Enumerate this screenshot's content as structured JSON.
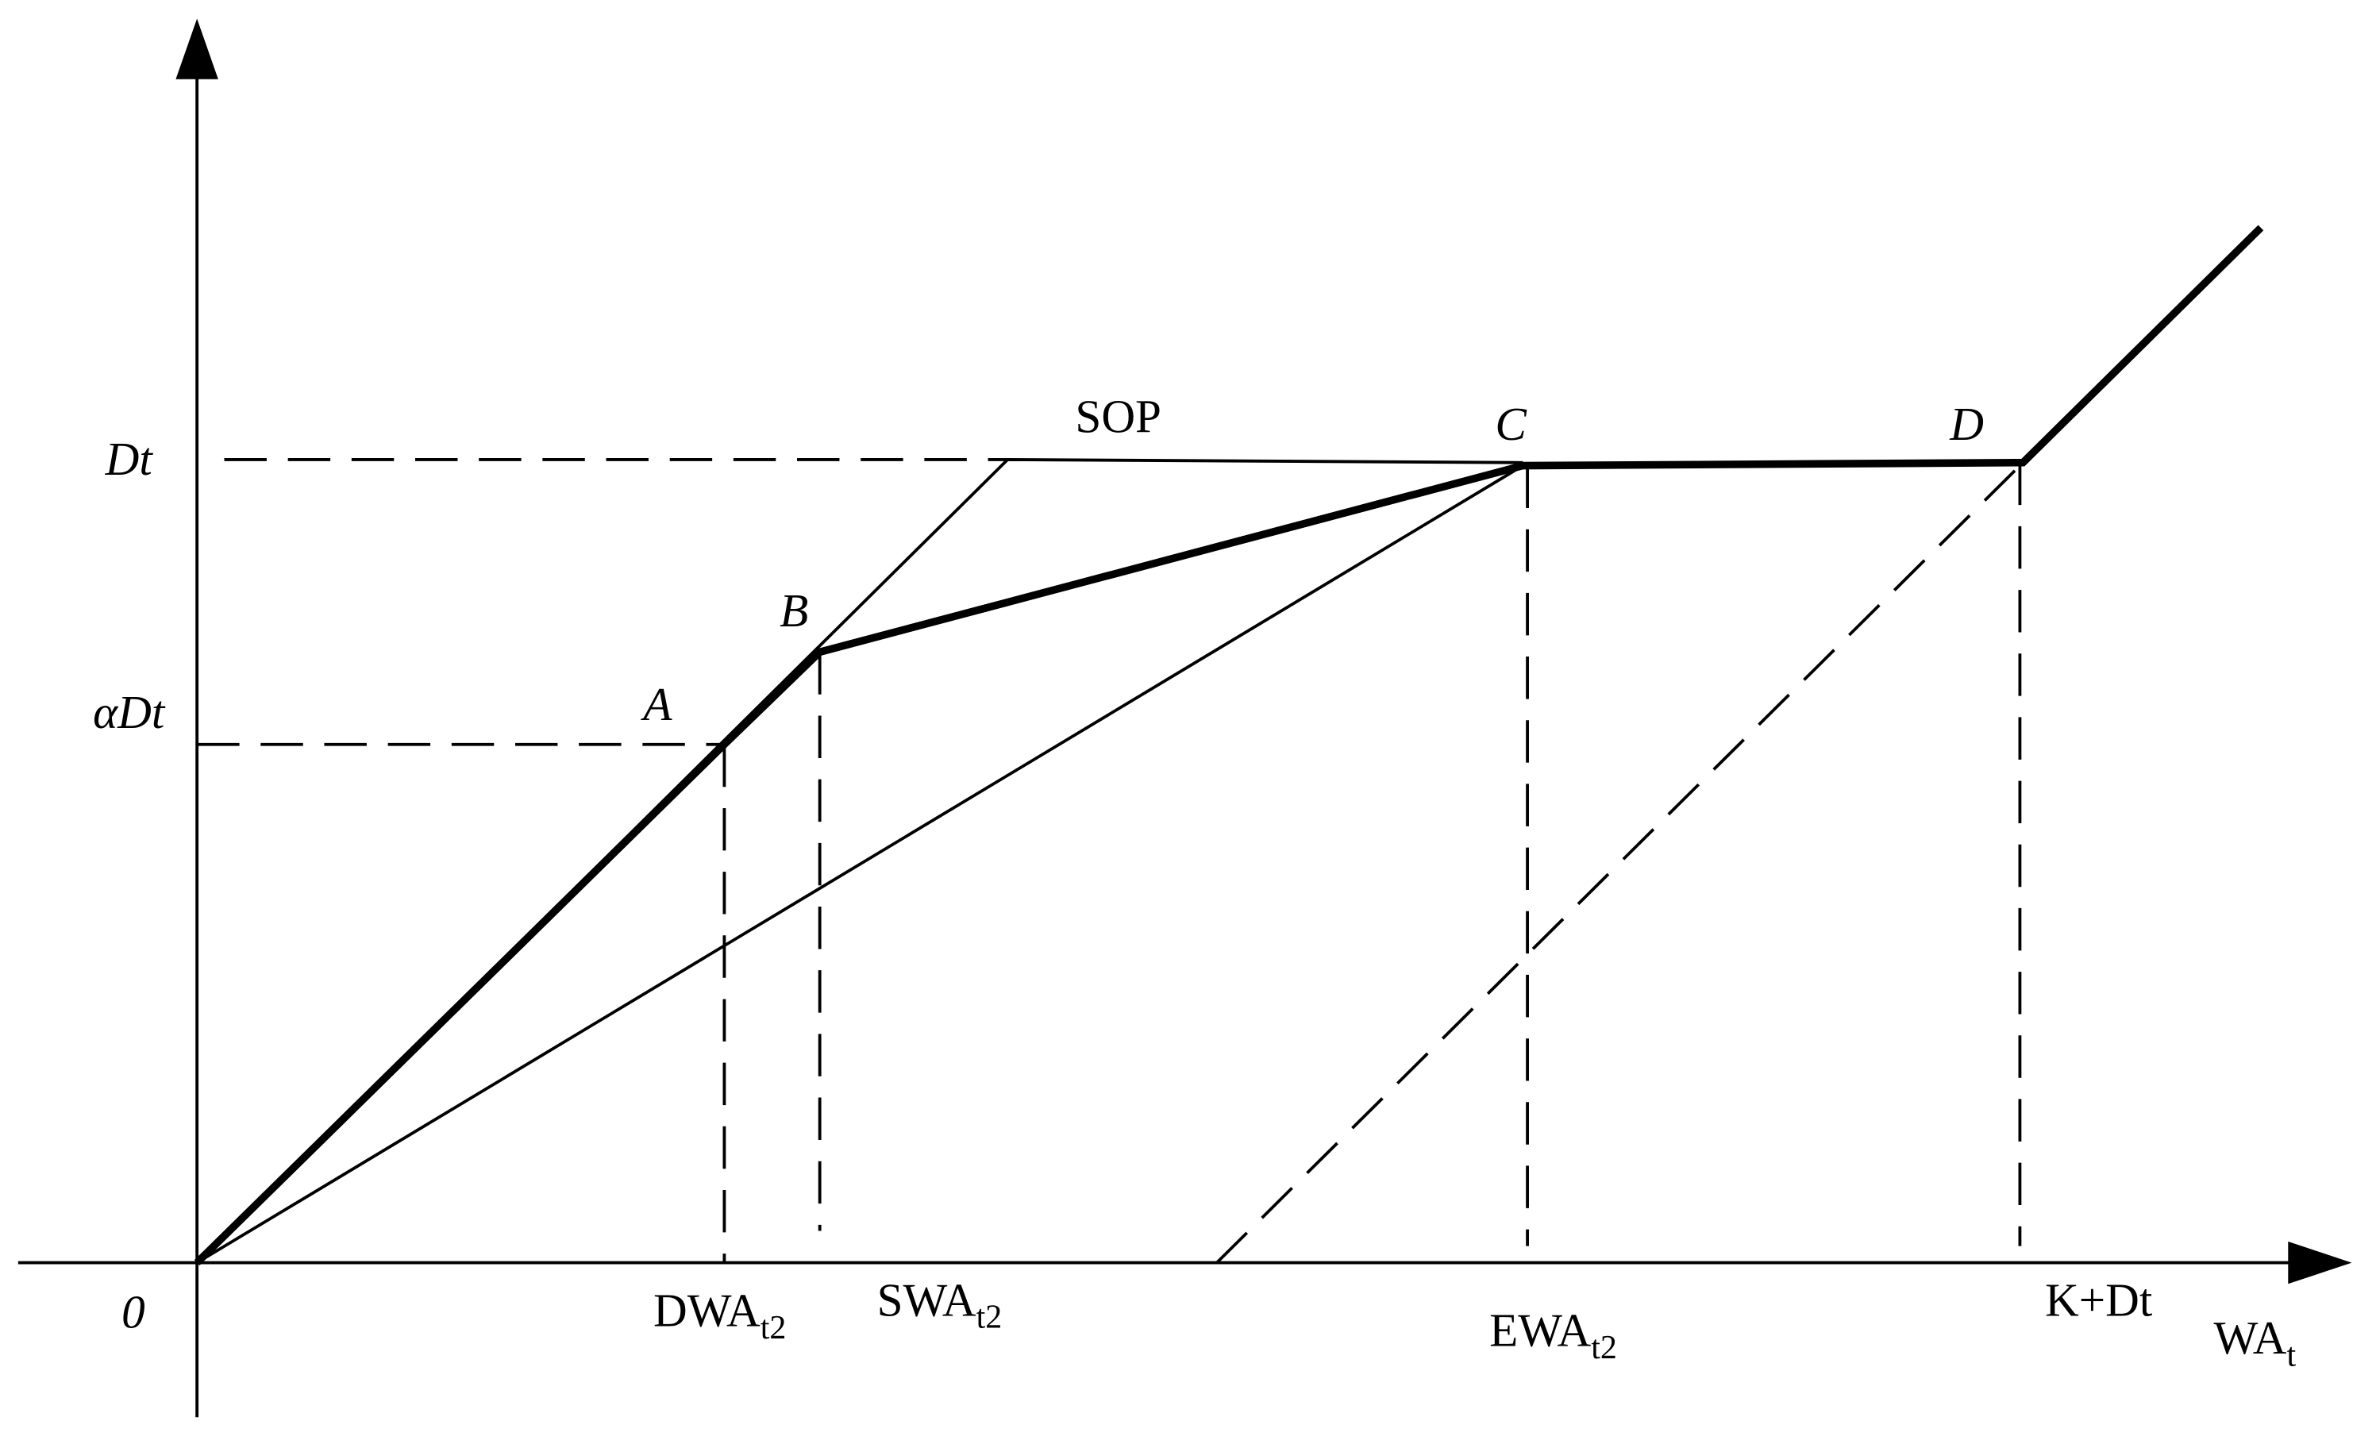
{
  "axes": {
    "y_labels": {
      "dt": "Dt",
      "alpha_dt": "αDt",
      "origin": "0"
    },
    "x_labels": {
      "dwa": {
        "main": "DWA",
        "sub": "t2"
      },
      "swa": {
        "main": "SWA",
        "sub": "t2"
      },
      "ewa": {
        "main": "EWA",
        "sub": "t2"
      },
      "kdt": "K+Dt",
      "wa": {
        "main": "WA",
        "sub": "t"
      }
    }
  },
  "points": {
    "a": "A",
    "b": "B",
    "c": "C",
    "d": "D"
  },
  "line_labels": {
    "sop": "SOP"
  }
}
